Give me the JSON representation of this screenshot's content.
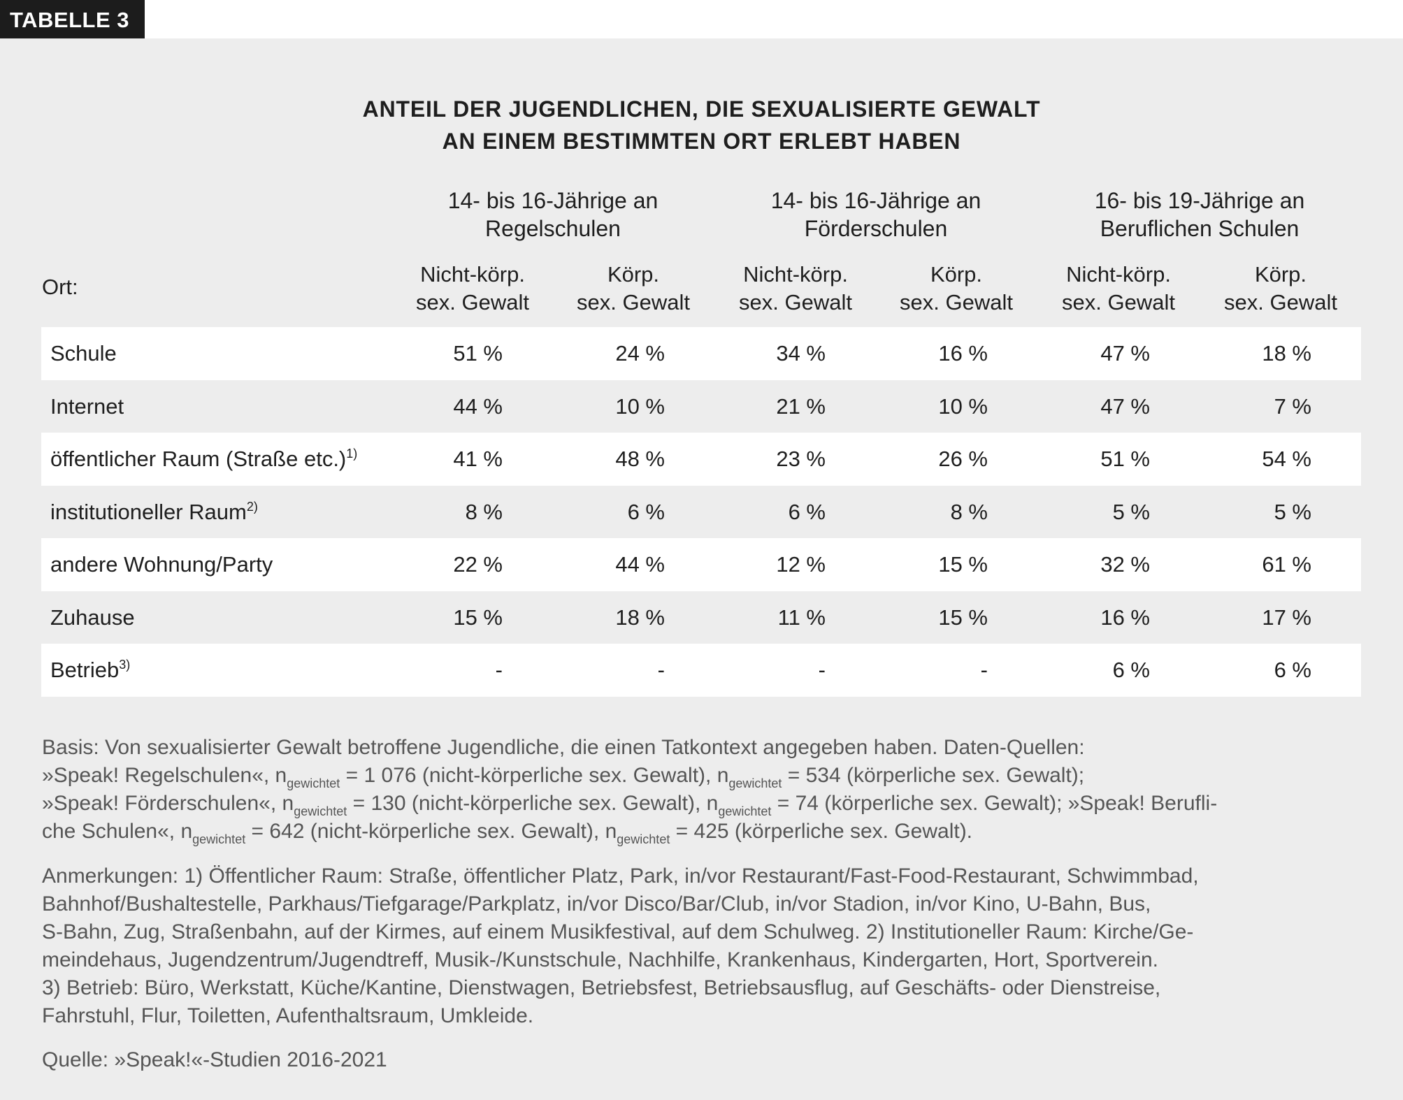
{
  "tag": "TABELLE 3",
  "title": [
    "ANTEIL DER JUGENDLICHEN, DIE SEXUALISIERTE GEWALT",
    "AN EINEM BESTIMMTEN ORT ERLEBT HABEN"
  ],
  "groups": [
    {
      "line1": "14- bis 16-Jährige an",
      "line2": "Regelschulen"
    },
    {
      "line1": "14- bis 16-Jährige an",
      "line2": "Förderschulen"
    },
    {
      "line1": "16- bis 19-Jährige an",
      "line2": "Beruflichen Schulen"
    }
  ],
  "subheaders": [
    {
      "line1": "Nicht-körp.",
      "line2": "sex. Gewalt"
    },
    {
      "line1": "Körp.",
      "line2": "sex. Gewalt"
    },
    {
      "line1": "Nicht-körp.",
      "line2": "sex. Gewalt"
    },
    {
      "line1": "Körp.",
      "line2": "sex. Gewalt"
    },
    {
      "line1": "Nicht-körp.",
      "line2": "sex. Gewalt"
    },
    {
      "line1": "Körp.",
      "line2": "sex. Gewalt"
    }
  ],
  "row_header": "Ort:",
  "rows": [
    {
      "label": "Schule",
      "sup": "",
      "values": [
        "51 %",
        "24 %",
        "34 %",
        "16 %",
        "47 %",
        "18 %"
      ]
    },
    {
      "label": "Internet",
      "sup": "",
      "values": [
        "44 %",
        "10 %",
        "21 %",
        "10 %",
        "47 %",
        "7 %"
      ]
    },
    {
      "label": "öffentlicher Raum (Straße etc.)",
      "sup": "1)",
      "values": [
        "41 %",
        "48 %",
        "23 %",
        "26 %",
        "51 %",
        "54 %"
      ]
    },
    {
      "label": "institutioneller Raum",
      "sup": "2)",
      "values": [
        "8 %",
        "6 %",
        "6 %",
        "8 %",
        "5 %",
        "5 %"
      ]
    },
    {
      "label": "andere Wohnung/Party",
      "sup": "",
      "values": [
        "22 %",
        "44 %",
        "12 %",
        "15 %",
        "32 %",
        "61 %"
      ]
    },
    {
      "label": "Zuhause",
      "sup": "",
      "values": [
        "15 %",
        "18 %",
        "11 %",
        "15 %",
        "16 %",
        "17 %"
      ]
    },
    {
      "label": "Betrieb",
      "sup": "3)",
      "values": [
        "-",
        "-",
        "-",
        "-",
        "6 %",
        "6 %"
      ]
    }
  ],
  "basis": [
    [
      "Basis: Von sexualisierter Gewalt betroffene Jugendliche, die einen Tatkontext angegeben haben. Daten-Quellen:"
    ],
    [
      "»Speak! Regelschulen«,  n",
      "gewichtet",
      " = 1 076 (nicht-körperliche sex. Gewalt), n",
      "gewichtet",
      " = 534 (körperliche sex. Gewalt);"
    ],
    [
      "»Speak! Förderschulen«, n",
      "gewichtet",
      " = 130 (nicht-körperliche sex. Gewalt), n",
      "gewichtet",
      " = 74 (körperliche sex. Gewalt); »Speak! Berufli-"
    ],
    [
      "che Schulen«, n",
      "gewichtet",
      " = 642 (nicht-körperliche sex. Gewalt), n",
      "gewichtet",
      " = 425 (körperliche sex. Gewalt)."
    ]
  ],
  "notes": [
    "Anmerkungen: 1) Öffentlicher Raum: Straße, öffentlicher Platz, Park, in/vor Restaurant/Fast-Food-Restaurant, Schwimmbad,",
    "Bahnhof/Bushaltestelle, Parkhaus/Tiefgarage/Parkplatz, in/vor Disco/Bar/Club, in/vor Stadion, in/vor Kino, U-Bahn, Bus,",
    "S-Bahn, Zug, Straßenbahn, auf der Kirmes, auf einem Musikfestival, auf dem Schulweg. 2) Institutioneller Raum: Kirche/Ge-",
    "meindehaus, Jugendzentrum/Jugendtreff, Musik-/Kunstschule, Nachhilfe, Krankenhaus, Kindergarten, Hort, Sportverein.",
    "3) Betrieb: Büro, Werkstatt, Küche/Kantine, Dienstwagen, Betriebsfest, Betriebsausflug, auf Geschäfts- oder Dienstreise,",
    "Fahrstuhl, Flur, Toiletten, Aufenthaltsraum, Umkleide."
  ],
  "source": "Quelle: »Speak!«-Studien 2016-2021"
}
